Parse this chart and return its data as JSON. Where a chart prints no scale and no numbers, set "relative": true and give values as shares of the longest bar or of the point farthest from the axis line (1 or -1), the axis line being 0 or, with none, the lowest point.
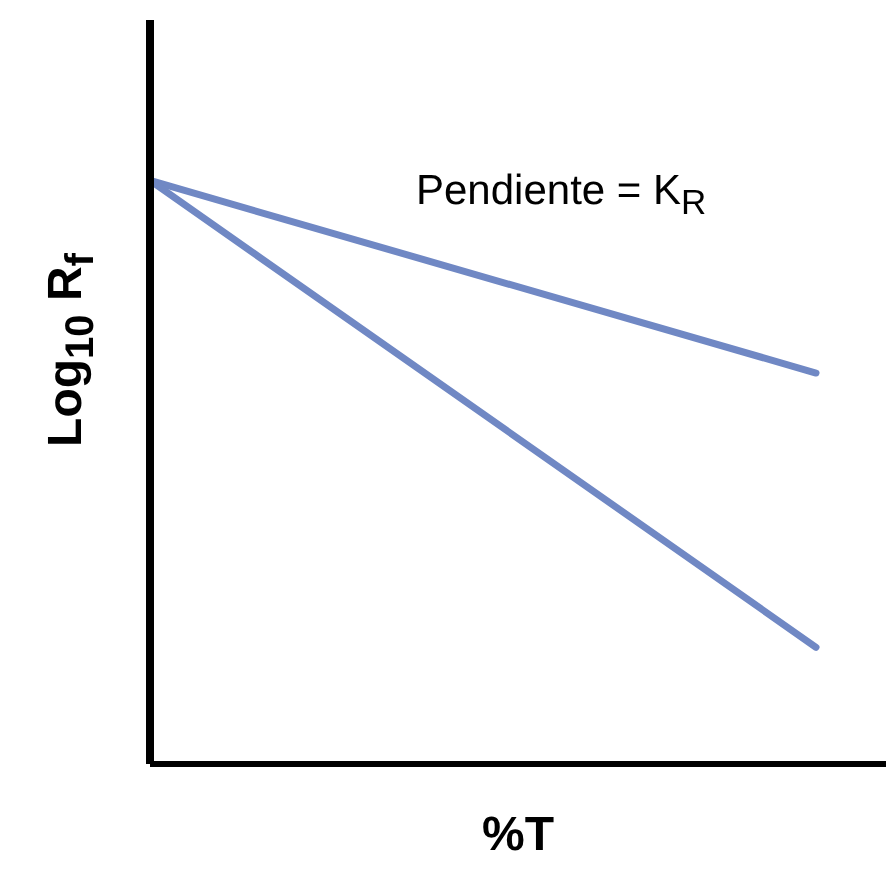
{
  "chart_data": {
    "type": "line",
    "relative": true,
    "xlabel": "%T",
    "ylabel": "Log$_{10}$ R$_{f}$",
    "annotations": [
      "Pendiente = K$_{R}$"
    ],
    "categories": [
      null,
      null
    ],
    "series": [
      {
        "color": "#7088c4",
        "values": [
          1,
          0.67
        ]
      },
      {
        "color": "#7088c4",
        "values": [
          1,
          0.2
        ]
      }
    ],
    "grid": false,
    "legend": false,
    "marker": "none",
    "line_style": "solid"
  }
}
